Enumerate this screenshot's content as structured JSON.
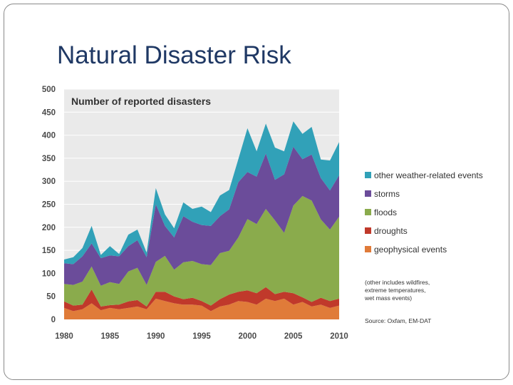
{
  "slide": {
    "title": "Natural Disaster Risk"
  },
  "chart_data": {
    "type": "area",
    "stacked": true,
    "title": "Number of reported disasters",
    "xlabel": "",
    "ylabel": "",
    "x": [
      1980,
      1981,
      1982,
      1983,
      1984,
      1985,
      1986,
      1987,
      1988,
      1989,
      1990,
      1991,
      1992,
      1993,
      1994,
      1995,
      1996,
      1997,
      1998,
      1999,
      2000,
      2001,
      2002,
      2003,
      2004,
      2005,
      2006,
      2007,
      2008,
      2009,
      2010
    ],
    "xlim": [
      1980,
      2010
    ],
    "ylim": [
      0,
      500
    ],
    "x_ticks": [
      1980,
      1985,
      1990,
      1995,
      2000,
      2005,
      2010
    ],
    "y_ticks": [
      0,
      50,
      100,
      150,
      200,
      250,
      300,
      350,
      400,
      450,
      500
    ],
    "grid": true,
    "legend_position": "right",
    "series": [
      {
        "name": "geophysical events",
        "color": "#e07b39",
        "values": [
          25,
          18,
          22,
          35,
          20,
          25,
          22,
          25,
          28,
          22,
          45,
          40,
          35,
          32,
          32,
          30,
          18,
          28,
          32,
          40,
          38,
          32,
          45,
          40,
          45,
          32,
          38,
          28,
          32,
          25,
          30
        ]
      },
      {
        "name": "droughts",
        "color": "#c0392b",
        "values": [
          14,
          12,
          10,
          30,
          8,
          6,
          10,
          14,
          14,
          6,
          15,
          20,
          15,
          12,
          15,
          10,
          12,
          16,
          22,
          20,
          25,
          25,
          25,
          15,
          15,
          25,
          10,
          10,
          15,
          15,
          15
        ]
      },
      {
        "name": "floods",
        "color": "#8aab4c",
        "values": [
          38,
          45,
          50,
          50,
          45,
          50,
          45,
          65,
          70,
          47,
          65,
          78,
          58,
          80,
          80,
          80,
          88,
          100,
          95,
          118,
          155,
          150,
          170,
          160,
          128,
          190,
          220,
          220,
          170,
          155,
          178
        ]
      },
      {
        "name": "storms",
        "color": "#6b4c9a",
        "values": [
          45,
          45,
          55,
          50,
          60,
          58,
          60,
          55,
          60,
          60,
          125,
          65,
          70,
          100,
          85,
          85,
          85,
          80,
          90,
          120,
          102,
          103,
          120,
          88,
          127,
          128,
          80,
          100,
          90,
          85,
          90
        ]
      },
      {
        "name": "other weather-related events",
        "color": "#31a1b8",
        "values": [
          8,
          15,
          18,
          38,
          7,
          20,
          5,
          25,
          23,
          10,
          35,
          25,
          20,
          30,
          28,
          40,
          30,
          45,
          42,
          50,
          95,
          55,
          65,
          70,
          50,
          55,
          55,
          60,
          40,
          65,
          72
        ]
      }
    ],
    "note": [
      "(other includes wildfires,",
      "extreme temperatures,",
      "wet mass events)"
    ],
    "source": "Source: Oxfam, EM-DAT"
  }
}
